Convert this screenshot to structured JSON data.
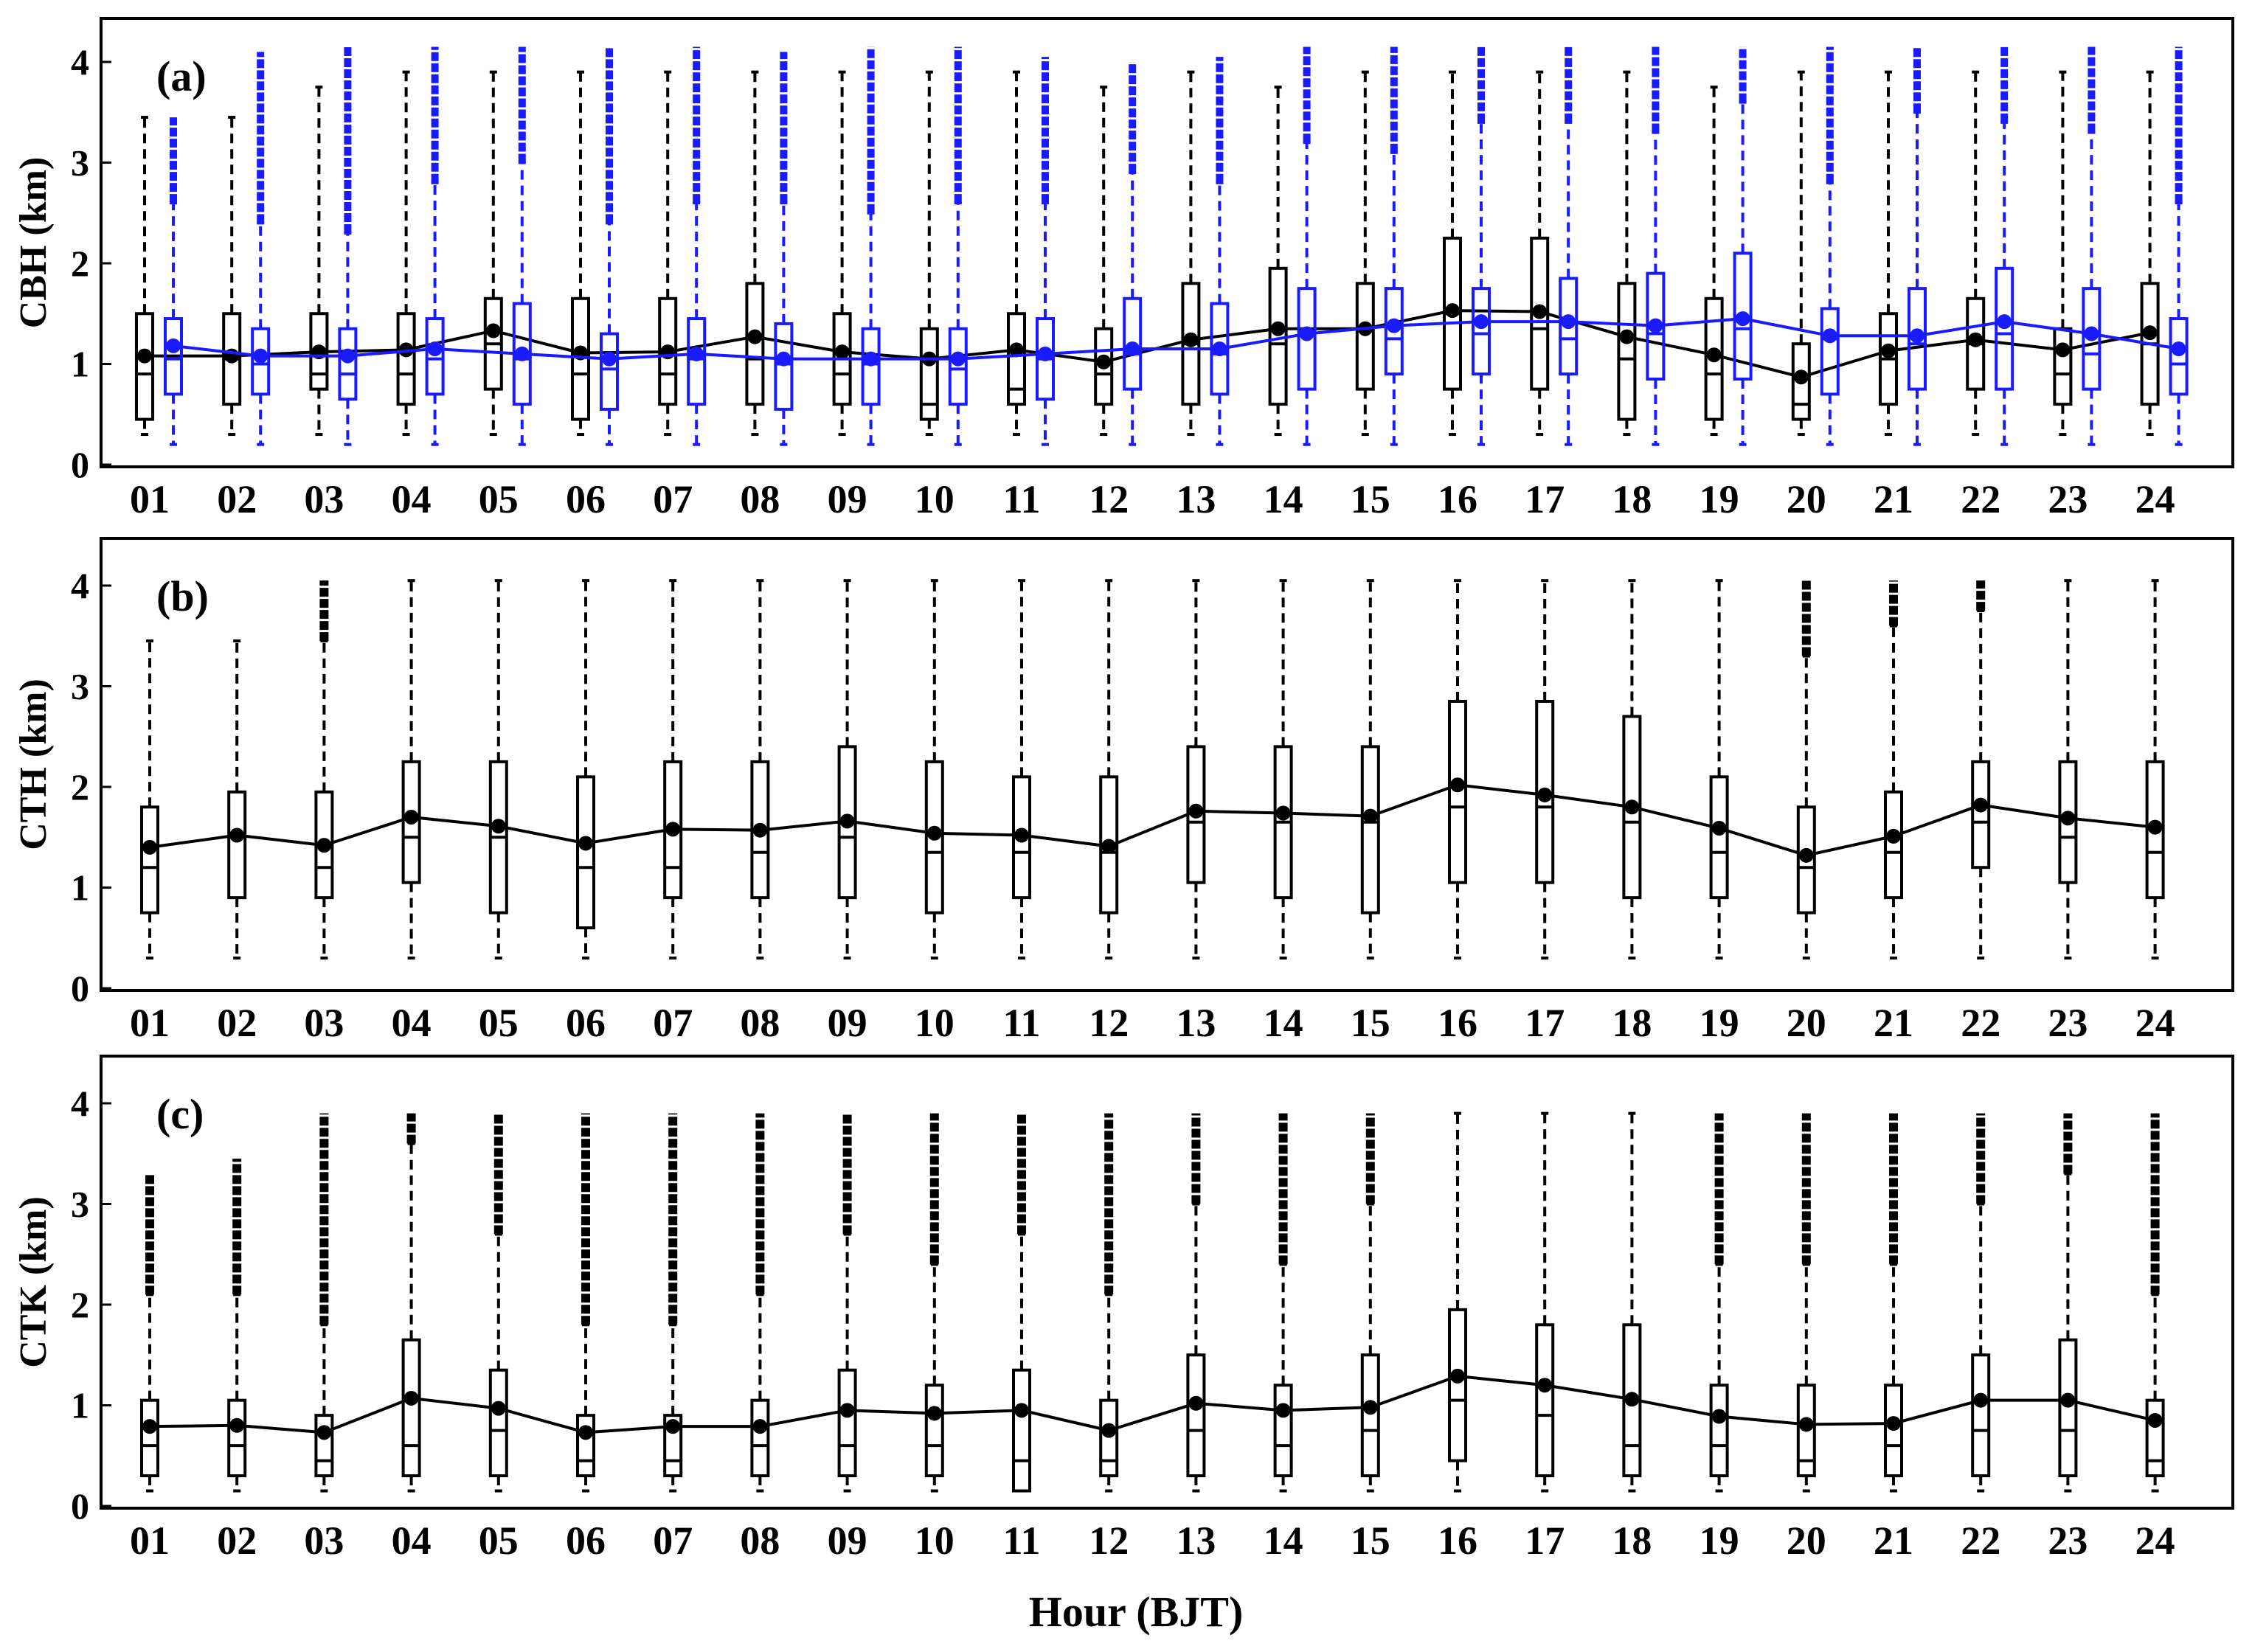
{
  "figure": {
    "xlabel": "Hour (BJT)",
    "hours": [
      "01",
      "02",
      "03",
      "04",
      "05",
      "06",
      "07",
      "08",
      "09",
      "10",
      "11",
      "12",
      "13",
      "14",
      "15",
      "16",
      "17",
      "18",
      "19",
      "20",
      "21",
      "22",
      "23",
      "24"
    ],
    "ytick_labels": [
      "0",
      "1",
      "2",
      "3",
      "4"
    ],
    "colors": {
      "primary": "#000000",
      "secondary": "#1a1aff"
    }
  },
  "chart_data": [
    {
      "type": "box",
      "panel_label": "(a)",
      "ylabel": "CBH (km)",
      "ylim": [
        0,
        4.5
      ],
      "series": [
        {
          "name": "CBH (black)",
          "color": "#000000",
          "q1": [
            0.45,
            0.6,
            0.75,
            0.6,
            0.75,
            0.45,
            0.6,
            0.6,
            0.6,
            0.45,
            0.6,
            0.6,
            0.6,
            0.6,
            0.75,
            0.75,
            0.75,
            0.45,
            0.45,
            0.45,
            0.6,
            0.75,
            0.6,
            0.6
          ],
          "median": [
            0.9,
            1.05,
            0.9,
            0.9,
            1.2,
            0.9,
            0.9,
            1.05,
            0.9,
            0.6,
            0.75,
            0.9,
            1.2,
            1.2,
            1.35,
            1.5,
            1.35,
            1.05,
            0.9,
            0.6,
            1.05,
            1.2,
            0.9,
            1.2
          ],
          "q3": [
            1.5,
            1.5,
            1.5,
            1.5,
            1.65,
            1.65,
            1.65,
            1.8,
            1.5,
            1.35,
            1.5,
            1.35,
            1.8,
            1.95,
            1.8,
            2.25,
            2.25,
            1.8,
            1.65,
            1.2,
            1.5,
            1.65,
            1.35,
            1.8
          ],
          "wlow": [
            0.3,
            0.3,
            0.3,
            0.3,
            0.3,
            0.3,
            0.3,
            0.3,
            0.3,
            0.3,
            0.3,
            0.3,
            0.3,
            0.3,
            0.3,
            0.3,
            0.3,
            0.3,
            0.3,
            0.3,
            0.3,
            0.3,
            0.3,
            0.3
          ],
          "whigh": [
            3.45,
            3.45,
            3.75,
            3.9,
            3.9,
            3.9,
            3.9,
            3.9,
            3.9,
            3.9,
            3.9,
            3.75,
            3.9,
            3.75,
            3.9,
            3.9,
            3.9,
            3.9,
            3.75,
            3.9,
            3.9,
            3.9,
            3.9,
            3.9
          ],
          "mean": [
            1.08,
            1.08,
            1.12,
            1.14,
            1.33,
            1.11,
            1.12,
            1.27,
            1.12,
            1.05,
            1.14,
            1.02,
            1.24,
            1.35,
            1.35,
            1.53,
            1.52,
            1.27,
            1.09,
            0.87,
            1.13,
            1.24,
            1.14,
            1.31
          ],
          "outlier_top": [
            3.45,
            3.45,
            3.75,
            3.9,
            3.9,
            3.9,
            3.9,
            3.9,
            3.9,
            3.9,
            3.9,
            3.75,
            3.9,
            3.75,
            3.9,
            3.9,
            3.9,
            3.9,
            3.75,
            3.9,
            3.9,
            3.9,
            3.9,
            3.9
          ]
        },
        {
          "name": "CBH (blue)",
          "color": "#1a1aff",
          "q1": [
            0.7,
            0.7,
            0.65,
            0.7,
            0.6,
            0.55,
            0.6,
            0.55,
            0.6,
            0.6,
            0.65,
            0.75,
            0.7,
            0.75,
            0.9,
            0.9,
            0.9,
            0.85,
            0.85,
            0.7,
            0.75,
            0.75,
            0.75,
            0.7
          ],
          "median": [
            1.05,
            1.0,
            0.9,
            1.05,
            1.05,
            0.95,
            1.05,
            1.0,
            1.0,
            0.95,
            1.05,
            1.1,
            1.1,
            1.3,
            1.25,
            1.3,
            1.25,
            1.3,
            1.35,
            1.25,
            1.2,
            1.3,
            1.1,
            1.0
          ],
          "q3": [
            1.45,
            1.35,
            1.35,
            1.45,
            1.6,
            1.3,
            1.45,
            1.4,
            1.35,
            1.35,
            1.45,
            1.65,
            1.6,
            1.75,
            1.75,
            1.75,
            1.85,
            1.9,
            2.1,
            1.55,
            1.75,
            1.95,
            1.75,
            1.45
          ],
          "wlow": [
            0.2,
            0.2,
            0.2,
            0.2,
            0.2,
            0.2,
            0.2,
            0.2,
            0.2,
            0.2,
            0.2,
            0.2,
            0.2,
            0.2,
            0.2,
            0.2,
            0.2,
            0.2,
            0.2,
            0.2,
            0.2,
            0.2,
            0.2,
            0.2
          ],
          "whigh": [
            2.6,
            2.4,
            2.3,
            2.8,
            3.0,
            2.4,
            2.6,
            2.6,
            2.5,
            2.6,
            2.6,
            2.9,
            2.8,
            3.2,
            3.1,
            3.4,
            3.4,
            3.3,
            3.6,
            2.8,
            3.5,
            3.4,
            3.3,
            2.6
          ],
          "mean": [
            1.18,
            1.08,
            1.08,
            1.15,
            1.1,
            1.05,
            1.1,
            1.05,
            1.05,
            1.05,
            1.1,
            1.15,
            1.15,
            1.3,
            1.38,
            1.42,
            1.42,
            1.38,
            1.45,
            1.28,
            1.28,
            1.42,
            1.3,
            1.15
          ],
          "outlier_top": [
            3.45,
            4.1,
            4.15,
            4.15,
            4.15,
            4.15,
            4.15,
            4.1,
            4.15,
            4.15,
            4.05,
            4.0,
            4.05,
            4.15,
            4.15,
            4.15,
            4.15,
            4.15,
            4.15,
            4.15,
            4.15,
            4.15,
            4.15,
            4.15
          ]
        }
      ]
    },
    {
      "type": "box",
      "panel_label": "(b)",
      "ylabel": "CTH (km)",
      "ylim": [
        0,
        4.5
      ],
      "series": [
        {
          "name": "CTH",
          "color": "#000000",
          "q1": [
            0.75,
            0.9,
            0.9,
            1.05,
            0.75,
            0.6,
            0.9,
            0.9,
            0.9,
            0.75,
            0.9,
            0.75,
            1.05,
            0.9,
            0.75,
            1.05,
            1.05,
            0.9,
            0.9,
            0.75,
            0.9,
            1.2,
            1.05,
            0.9
          ],
          "median": [
            1.2,
            1.5,
            1.2,
            1.5,
            1.5,
            1.2,
            1.2,
            1.35,
            1.5,
            1.35,
            1.35,
            1.35,
            1.65,
            1.65,
            1.65,
            1.8,
            1.8,
            1.65,
            1.35,
            1.2,
            1.35,
            1.65,
            1.5,
            1.35
          ],
          "q3": [
            1.8,
            1.95,
            1.95,
            2.25,
            2.25,
            2.1,
            2.25,
            2.25,
            2.4,
            2.25,
            2.1,
            2.1,
            2.4,
            2.4,
            2.4,
            2.85,
            2.85,
            2.7,
            2.1,
            1.8,
            1.95,
            2.25,
            2.25,
            2.25
          ],
          "wlow": [
            0.3,
            0.3,
            0.3,
            0.3,
            0.3,
            0.3,
            0.3,
            0.3,
            0.3,
            0.3,
            0.3,
            0.3,
            0.3,
            0.3,
            0.3,
            0.3,
            0.3,
            0.3,
            0.3,
            0.3,
            0.3,
            0.3,
            0.3,
            0.3
          ],
          "whigh": [
            3.45,
            3.45,
            3.45,
            4.05,
            4.05,
            4.05,
            4.05,
            4.05,
            4.05,
            4.05,
            4.05,
            4.05,
            4.05,
            4.05,
            4.05,
            4.05,
            4.05,
            4.05,
            4.05,
            3.3,
            3.6,
            3.75,
            4.05,
            4.05
          ],
          "mean": [
            1.4,
            1.52,
            1.42,
            1.7,
            1.61,
            1.44,
            1.58,
            1.57,
            1.66,
            1.54,
            1.52,
            1.41,
            1.76,
            1.74,
            1.71,
            2.02,
            1.92,
            1.8,
            1.59,
            1.32,
            1.51,
            1.82,
            1.69,
            1.6
          ],
          "outlier_top": [
            3.45,
            3.45,
            4.05,
            4.05,
            4.05,
            4.05,
            4.05,
            4.05,
            4.05,
            4.05,
            4.05,
            4.05,
            4.05,
            4.05,
            4.05,
            4.05,
            4.05,
            4.05,
            4.05,
            4.05,
            4.05,
            4.05,
            4.05,
            4.05
          ]
        }
      ]
    },
    {
      "type": "box",
      "panel_label": "(c)",
      "ylabel": "CTK (km)",
      "ylim": [
        0,
        4.5
      ],
      "series": [
        {
          "name": "CTK",
          "color": "#000000",
          "q1": [
            0.3,
            0.3,
            0.3,
            0.3,
            0.3,
            0.3,
            0.3,
            0.3,
            0.3,
            0.3,
            0.15,
            0.3,
            0.3,
            0.3,
            0.3,
            0.45,
            0.3,
            0.3,
            0.3,
            0.3,
            0.3,
            0.3,
            0.3,
            0.3
          ],
          "median": [
            0.6,
            0.6,
            0.45,
            0.6,
            0.75,
            0.45,
            0.45,
            0.6,
            0.6,
            0.6,
            0.45,
            0.45,
            0.75,
            0.6,
            0.75,
            1.05,
            0.9,
            0.6,
            0.6,
            0.45,
            0.6,
            0.75,
            0.75,
            0.45
          ],
          "q3": [
            1.05,
            1.05,
            0.9,
            1.65,
            1.35,
            0.9,
            0.9,
            1.05,
            1.35,
            1.2,
            1.35,
            1.05,
            1.5,
            1.2,
            1.5,
            1.95,
            1.8,
            1.8,
            1.2,
            1.2,
            1.2,
            1.5,
            1.65,
            1.05
          ],
          "wlow": [
            0.15,
            0.15,
            0.15,
            0.15,
            0.15,
            0.15,
            0.15,
            0.15,
            0.15,
            0.15,
            0.15,
            0.15,
            0.15,
            0.15,
            0.15,
            0.15,
            0.15,
            0.15,
            0.15,
            0.15,
            0.15,
            0.15,
            0.15,
            0.15
          ],
          "whigh": [
            2.1,
            2.1,
            1.8,
            3.6,
            2.7,
            1.8,
            1.8,
            2.1,
            2.7,
            2.4,
            2.7,
            2.1,
            3.0,
            2.4,
            3.0,
            3.9,
            3.9,
            3.9,
            2.4,
            2.4,
            2.4,
            3.0,
            3.3,
            2.1
          ],
          "mean": [
            0.79,
            0.8,
            0.73,
            1.07,
            0.97,
            0.73,
            0.79,
            0.79,
            0.95,
            0.92,
            0.95,
            0.75,
            1.02,
            0.95,
            0.98,
            1.29,
            1.2,
            1.06,
            0.89,
            0.81,
            0.82,
            1.05,
            1.05,
            0.85
          ],
          "outlier_top": [
            3.3,
            3.45,
            3.9,
            3.9,
            3.9,
            3.9,
            3.9,
            3.9,
            3.9,
            3.9,
            3.9,
            3.9,
            3.9,
            3.9,
            3.9,
            3.9,
            3.9,
            3.9,
            3.9,
            3.9,
            3.9,
            3.9,
            3.9,
            3.9
          ]
        }
      ]
    }
  ]
}
